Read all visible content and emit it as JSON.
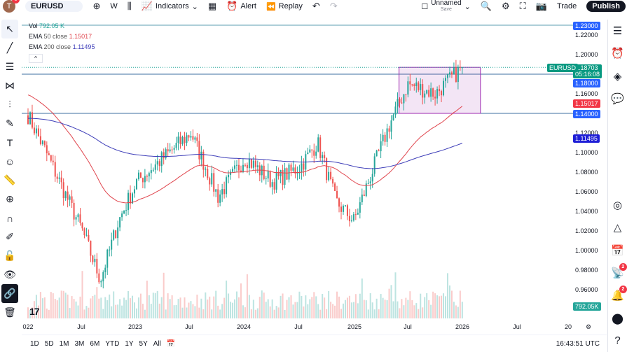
{
  "header": {
    "avatar_letter": "T",
    "notification_count": "5",
    "symbol": "EURUSD",
    "interval": "W",
    "indicators_label": "Indicators",
    "alert_label": "Alert",
    "replay_label": "Replay",
    "layout_name": "Unnamed",
    "layout_save": "Save",
    "trade_label": "Trade",
    "publish_label": "Publish"
  },
  "legend": {
    "vol_label": "Vol",
    "vol_value": "792.05 K",
    "ema50_label": "EMA",
    "ema50_params": "50 close",
    "ema50_value": "1.15017",
    "ema200_label": "EMA",
    "ema200_params": "200 close",
    "ema200_value": "1.11495"
  },
  "price_axis": {
    "ticks": [
      "1.22000",
      "1.20000",
      "1.16000",
      "1.12000",
      "1.10000",
      "1.08000",
      "1.06000",
      "1.04000",
      "1.02000",
      "1.00000",
      "0.98000",
      "0.96000"
    ],
    "tags": {
      "line_top": "1.23000",
      "last_price": "1.18703",
      "countdown": "05:16:08",
      "line_mid": "1.18000",
      "ema50": "1.15017",
      "line_low": "1.14000",
      "ema200": "1.11495",
      "symbol": "EURUSD",
      "volume": "792.05K"
    }
  },
  "time_axis": [
    "022",
    "Jul",
    "2023",
    "Jul",
    "2024",
    "Jul",
    "2025",
    "Jul",
    "2026",
    "Jul",
    "20"
  ],
  "ranges": [
    "1D",
    "5D",
    "1M",
    "3M",
    "6M",
    "YTD",
    "1Y",
    "5Y",
    "All"
  ],
  "clock": "16:43:51 UTC",
  "right_badges": {
    "ideas": "2",
    "notifications": "2"
  },
  "colors": {
    "up": "#26a69a",
    "down": "#ef5350",
    "ema50": "#e0464e",
    "ema200": "#3d3db8",
    "line": "#2962ff",
    "rect": "#9c27b0"
  },
  "chart_data": {
    "type": "candlestick",
    "symbol": "EURUSD",
    "interval": "W",
    "ylim": [
      0.95,
      1.235
    ],
    "path": [
      [
        "2022-01",
        1.138
      ],
      [
        "2022-03",
        1.1
      ],
      [
        "2022-05",
        1.06
      ],
      [
        "2022-07",
        1.02
      ],
      [
        "2022-09",
        0.97
      ],
      [
        "2022-11",
        1.03
      ],
      [
        "2023-01",
        1.07
      ],
      [
        "2023-04",
        1.095
      ],
      [
        "2023-07",
        1.12
      ],
      [
        "2023-10",
        1.055
      ],
      [
        "2024-01",
        1.095
      ],
      [
        "2024-04",
        1.07
      ],
      [
        "2024-07",
        1.085
      ],
      [
        "2024-09",
        1.11
      ],
      [
        "2024-11",
        1.05
      ],
      [
        "2025-01",
        1.03
      ],
      [
        "2025-03",
        1.08
      ],
      [
        "2025-05",
        1.13
      ],
      [
        "2025-07",
        1.17
      ],
      [
        "2025-10",
        1.16
      ],
      [
        "2026-01",
        1.187
      ]
    ],
    "hlines": [
      1.23,
      1.18,
      1.14
    ],
    "rectangle": {
      "from": "2025-06",
      "to": "2026-03",
      "top": 1.187,
      "bottom": 1.14
    }
  }
}
